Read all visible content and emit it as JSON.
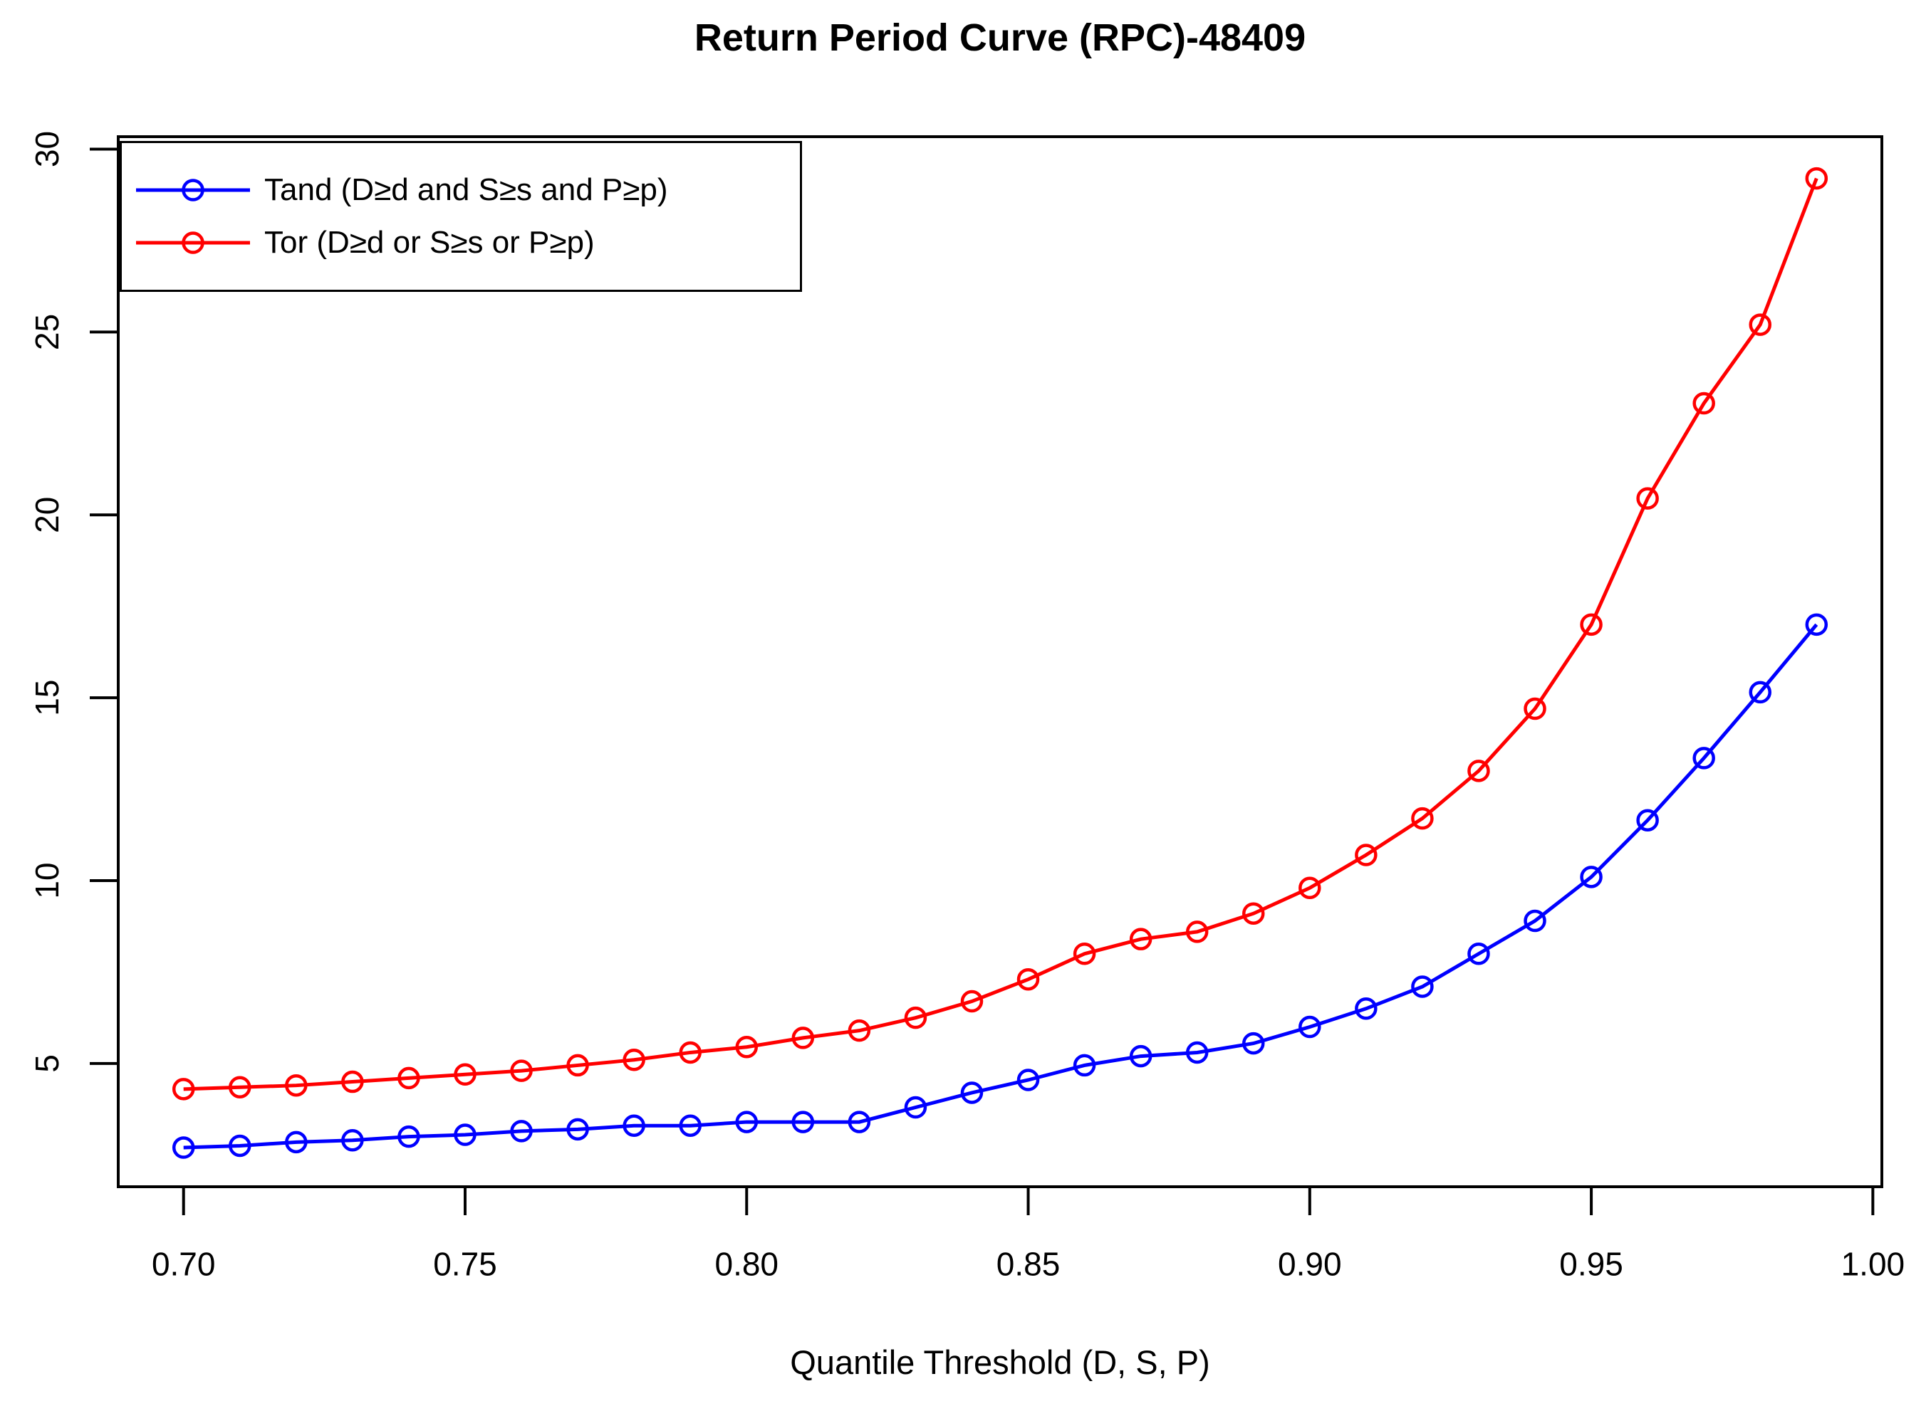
{
  "title": "Return Period Curve (RPC)-48409",
  "x_axis": {
    "label": "Quantile Threshold (D, S, P)",
    "tick_labels": [
      "0.70",
      "0.75",
      "0.80",
      "0.85",
      "0.90",
      "0.95",
      "1.00"
    ],
    "tick_values": [
      0.7,
      0.75,
      0.8,
      0.85,
      0.9,
      0.95,
      1.0
    ]
  },
  "y_axis": {
    "label": "",
    "tick_labels": [
      "5",
      "10",
      "15",
      "20",
      "25",
      "30"
    ],
    "tick_values": [
      5,
      10,
      15,
      20,
      25,
      30
    ]
  },
  "legend": {
    "items": [
      {
        "label": "Tand (D≥d and S≥s and P≥p)",
        "color": "#0000ff"
      },
      {
        "label": "Tor (D≥d or S≥s or P≥p)",
        "color": "#ff0000"
      }
    ]
  },
  "colors": {
    "tand": "#0000ff",
    "tor": "#ff0000",
    "axis": "#000000",
    "background": "#ffffff"
  },
  "chart_data": {
    "type": "line",
    "title": "Return Period Curve (RPC)-48409",
    "xlabel": "Quantile Threshold (D, S, P)",
    "ylabel": "",
    "grid": false,
    "legend_position": "top-left",
    "marker": "open-circle",
    "xlim": [
      0.6884,
      1.0016
    ],
    "ylim": [
      1.63,
      30.34
    ],
    "x": [
      0.7,
      0.71,
      0.72,
      0.73,
      0.74,
      0.75,
      0.76,
      0.77,
      0.78,
      0.79,
      0.8,
      0.81,
      0.82,
      0.83,
      0.84,
      0.85,
      0.86,
      0.87,
      0.88,
      0.89,
      0.9,
      0.91,
      0.92,
      0.93,
      0.94,
      0.95,
      0.96,
      0.97,
      0.98,
      0.99
    ],
    "series": [
      {
        "name": "Tand (D≥d and S≥s and P≥p)",
        "key": "tand",
        "color": "#0000ff",
        "values": [
          2.7,
          2.75,
          2.85,
          2.9,
          3.0,
          3.05,
          3.15,
          3.2,
          3.3,
          3.3,
          3.4,
          3.4,
          3.4,
          3.8,
          4.2,
          4.55,
          4.95,
          5.2,
          5.3,
          5.55,
          6.0,
          6.5,
          7.1,
          8.0,
          8.9,
          10.1,
          11.65,
          13.35,
          15.15,
          17.0
        ]
      },
      {
        "name": "Tor (D≥d or S≥s or P≥p)",
        "key": "tor",
        "color": "#ff0000",
        "values": [
          4.3,
          4.35,
          4.4,
          4.5,
          4.6,
          4.7,
          4.8,
          4.95,
          5.1,
          5.3,
          5.45,
          5.7,
          5.9,
          6.25,
          6.7,
          7.3,
          8.0,
          8.4,
          8.6,
          9.1,
          9.8,
          10.7,
          11.7,
          13.0,
          14.7,
          17.0,
          20.45,
          23.05,
          25.2,
          29.2
        ]
      }
    ]
  }
}
